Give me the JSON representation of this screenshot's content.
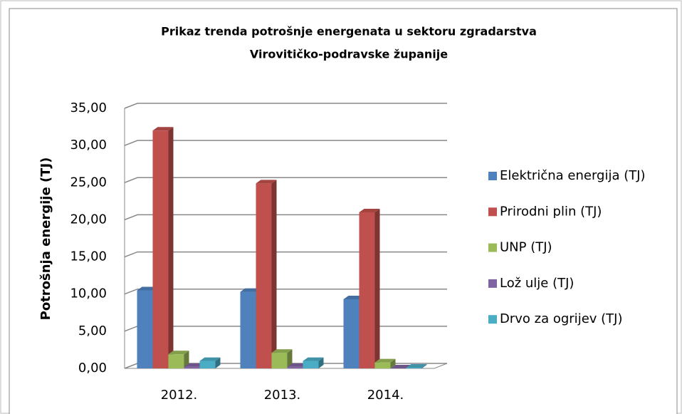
{
  "chart_data": {
    "type": "bar3d",
    "title": [
      "Prikaz trenda potrošnje energenata u sektoru zgradarstva",
      "Virovitičko-podravske županije"
    ],
    "y_label": "Potrošnja energije (TJ)",
    "categories": [
      "2012.",
      "2013.",
      "2014."
    ],
    "series": [
      {
        "name": "Električna energija (TJ)",
        "color": "#4f81bd",
        "values": [
          10.5,
          10.3,
          9.3
        ]
      },
      {
        "name": "Prirodni plin (TJ)",
        "color": "#c0504d",
        "values": [
          32.0,
          24.9,
          21.0
        ]
      },
      {
        "name": "UNP (TJ)",
        "color": "#9bbb59",
        "values": [
          1.9,
          2.1,
          0.8
        ]
      },
      {
        "name": "Lož ulje (TJ)",
        "color": "#8064a2",
        "values": [
          0.2,
          0.2,
          0.0
        ]
      },
      {
        "name": "Drvo za ogrijev (TJ)",
        "color": "#4bacc6",
        "values": [
          1.0,
          1.0,
          0.1
        ]
      }
    ],
    "ylim": [
      0,
      35
    ],
    "yticks": [
      {
        "value": 0,
        "label": "0,00"
      },
      {
        "value": 5,
        "label": "5,00"
      },
      {
        "value": 10,
        "label": "10,00"
      },
      {
        "value": 15,
        "label": "15,00"
      },
      {
        "value": 20,
        "label": "20,00"
      },
      {
        "value": 25,
        "label": "25,00"
      },
      {
        "value": 30,
        "label": "30,00"
      },
      {
        "value": 35,
        "label": "35,00"
      }
    ],
    "grid": true,
    "legend": "right"
  }
}
